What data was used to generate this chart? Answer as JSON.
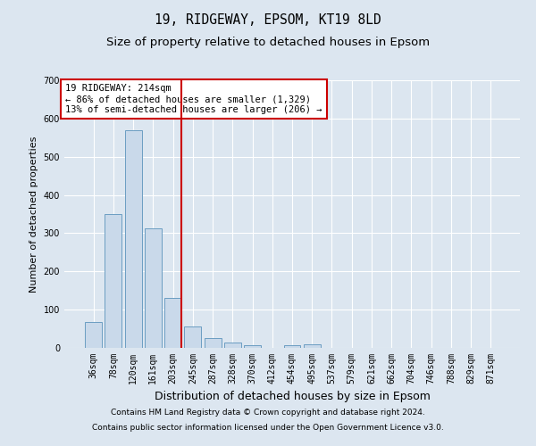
{
  "title_line1": "19, RIDGEWAY, EPSOM, KT19 8LD",
  "title_line2": "Size of property relative to detached houses in Epsom",
  "xlabel": "Distribution of detached houses by size in Epsom",
  "ylabel": "Number of detached properties",
  "categories": [
    "36sqm",
    "78sqm",
    "120sqm",
    "161sqm",
    "203sqm",
    "245sqm",
    "287sqm",
    "328sqm",
    "370sqm",
    "412sqm",
    "454sqm",
    "495sqm",
    "537sqm",
    "579sqm",
    "621sqm",
    "662sqm",
    "704sqm",
    "746sqm",
    "788sqm",
    "829sqm",
    "871sqm"
  ],
  "values": [
    68,
    350,
    570,
    312,
    130,
    57,
    25,
    13,
    7,
    0,
    7,
    10,
    0,
    0,
    0,
    0,
    0,
    0,
    0,
    0,
    0
  ],
  "bar_color": "#c9d9ea",
  "bar_edge_color": "#6b9dc2",
  "vline_color": "#cc0000",
  "vline_x": 4.42,
  "annotation_text": "19 RIDGEWAY: 214sqm\n← 86% of detached houses are smaller (1,329)\n13% of semi-detached houses are larger (206) →",
  "annotation_box_color": "#ffffff",
  "annotation_box_edge": "#cc0000",
  "ylim": [
    0,
    700
  ],
  "yticks": [
    0,
    100,
    200,
    300,
    400,
    500,
    600,
    700
  ],
  "background_color": "#dce6f0",
  "plot_bg_color": "#dce6f0",
  "footer_line1": "Contains HM Land Registry data © Crown copyright and database right 2024.",
  "footer_line2": "Contains public sector information licensed under the Open Government Licence v3.0.",
  "grid_color": "#ffffff",
  "title_fontsize": 10.5,
  "subtitle_fontsize": 9.5,
  "tick_fontsize": 7,
  "xlabel_fontsize": 9,
  "ylabel_fontsize": 8,
  "annotation_fontsize": 7.5,
  "footer_fontsize": 6.5
}
